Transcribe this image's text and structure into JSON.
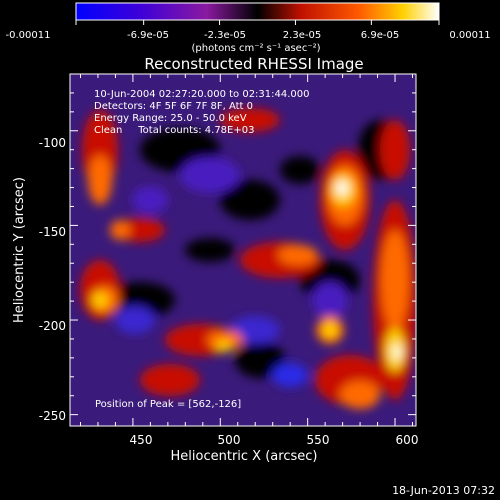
{
  "colorbar": {
    "tick_labels": [
      "-0.00011",
      "-6.9e-05",
      "-2.3e-05",
      "2.3e-05",
      "6.9e-05",
      "0.00011"
    ],
    "tick_values": [
      -0.00011,
      -6.9e-05,
      -2.3e-05,
      2.3e-05,
      6.9e-05,
      0.00011
    ],
    "unit_label": "(photons cm⁻² s⁻¹ asec⁻²)",
    "range": [
      -0.00011,
      0.00011
    ],
    "colors": [
      "#0000ff",
      "#3f00d8",
      "#8a1aa0",
      "#000000",
      "#c01000",
      "#ff5a00",
      "#ffd000",
      "#ffffff"
    ]
  },
  "plot": {
    "title": "Reconstructed RHESSI Image",
    "xlabel": "Heliocentric X (arcsec)",
    "ylabel": "Heliocentric Y (arcsec)",
    "x_ticks": [
      "450",
      "500",
      "550",
      "600"
    ],
    "x_tick_values": [
      450,
      500,
      550,
      600
    ],
    "y_ticks": [
      "-100",
      "-150",
      "-200",
      "-250"
    ],
    "y_tick_values": [
      -100,
      -150,
      -200,
      -250
    ],
    "xlim": [
      414,
      612
    ],
    "ylim": [
      -256,
      -70
    ]
  },
  "info": {
    "time_range": "10-Jun-2004 02:27:20.000 to 02:31:44.000",
    "detectors": "Detectors: 4F 5F 6F 7F 8F, Att 0",
    "energy": "Energy Range: 25.0 - 50.0 keV",
    "clean_counts": "Clean     Total counts: 4.78E+03",
    "peak": "Position of Peak = [562,-126]"
  },
  "timestamp": "18-Jun-2013 07:32"
}
